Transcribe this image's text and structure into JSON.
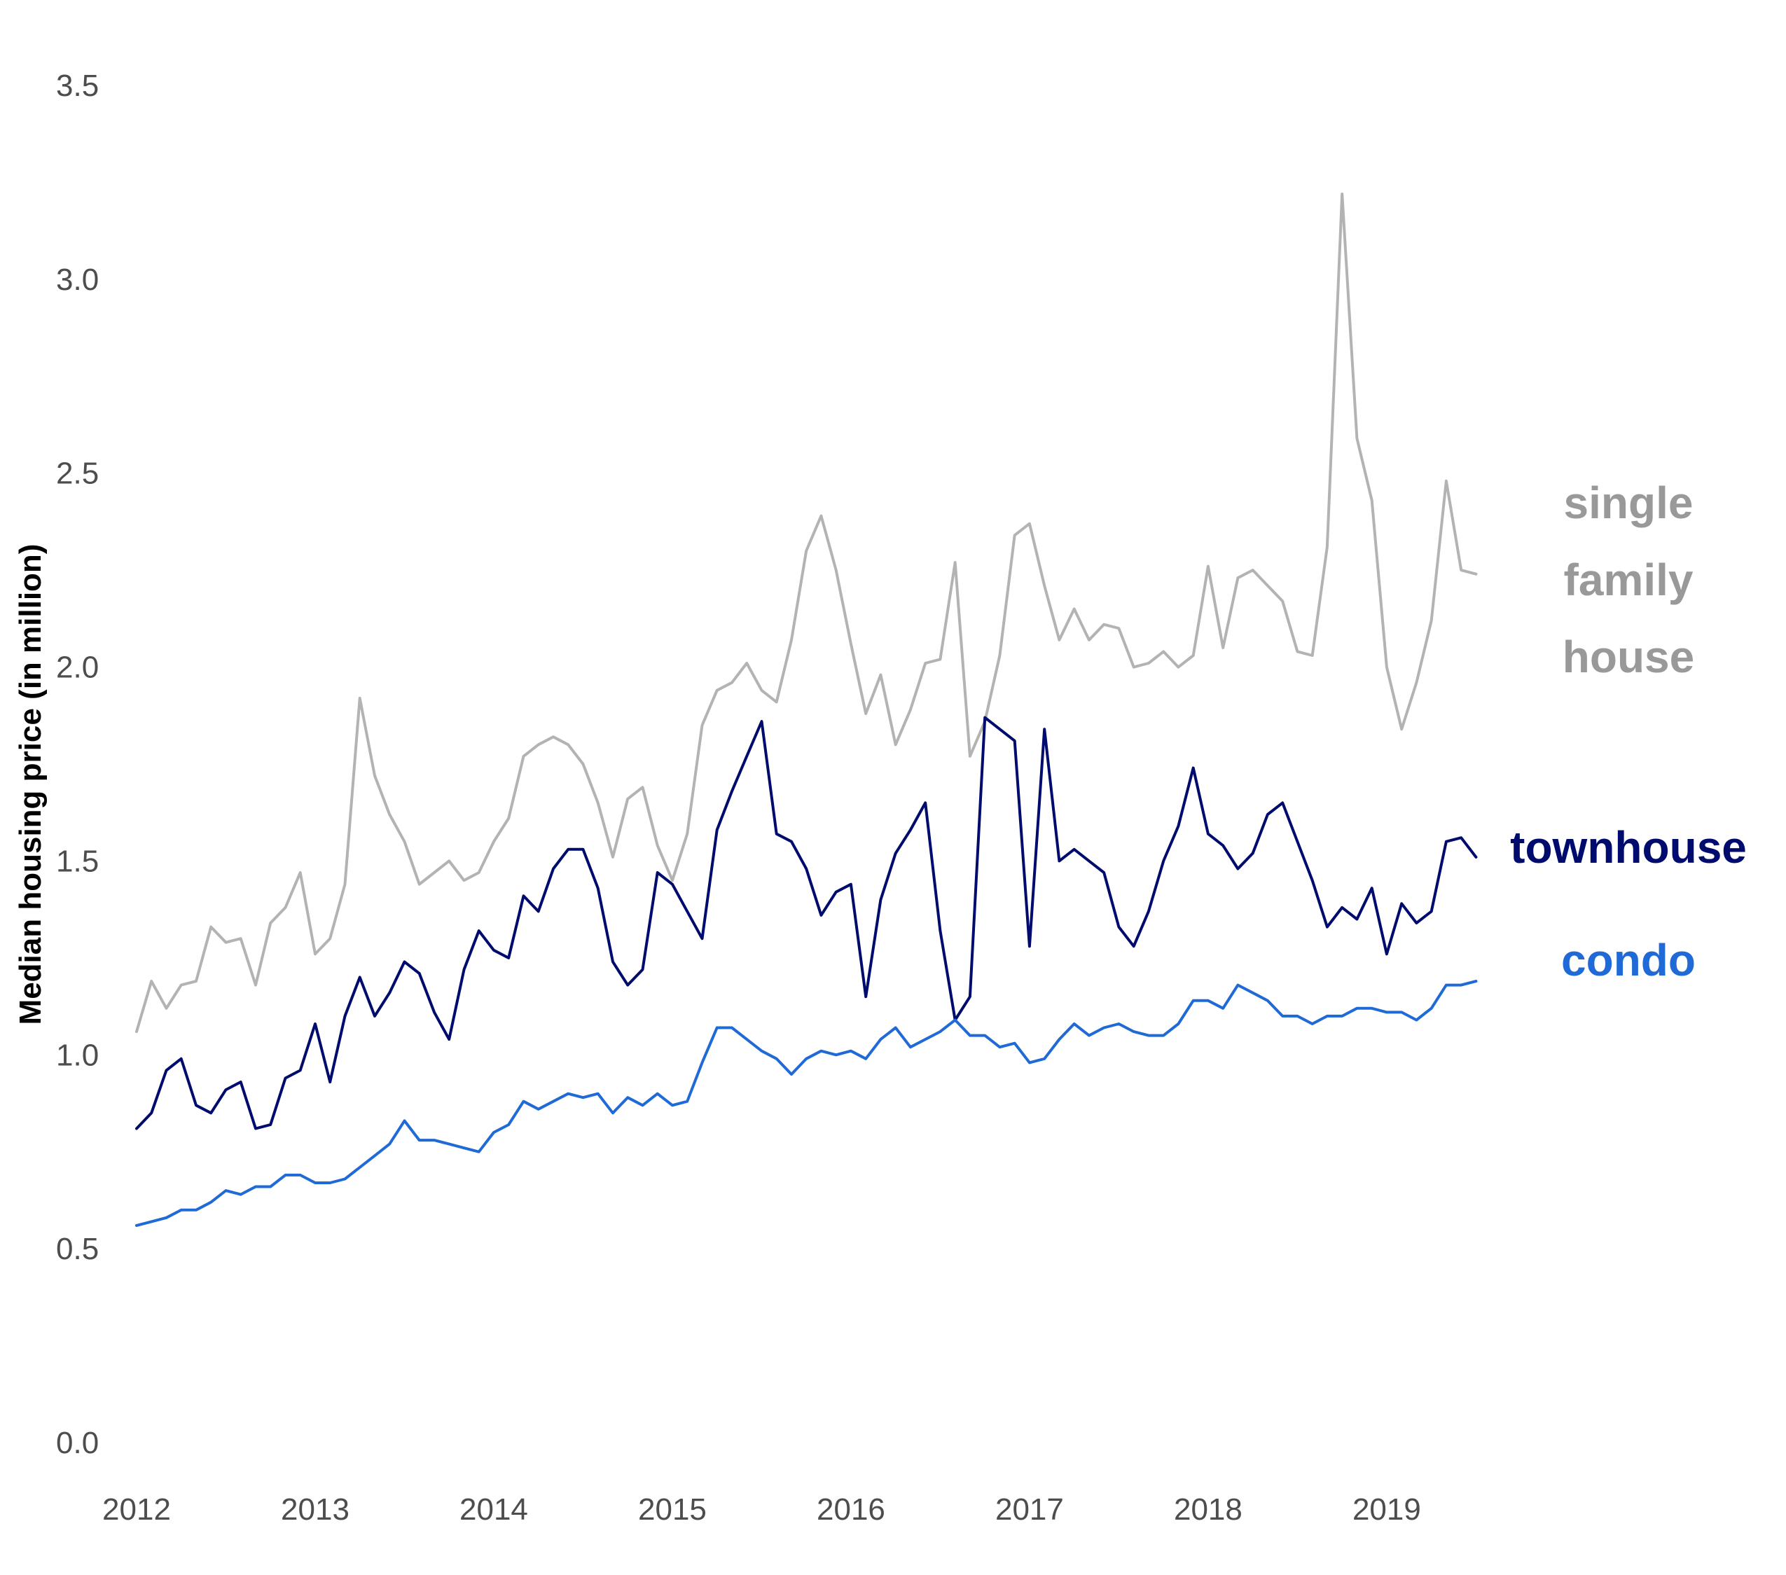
{
  "chart_data": {
    "type": "line",
    "title": "",
    "xlabel": "",
    "ylabel": "Median housing price (in million)",
    "x_start": "2012-01",
    "x_end": "2019-07",
    "x_step": "month",
    "xlim": [
      2012.0,
      2019.62
    ],
    "ylim": [
      0.0,
      3.5
    ],
    "y_ticks": [
      "0.0",
      "0.5",
      "1.0",
      "1.5",
      "2.0",
      "2.5",
      "3.0",
      "3.5"
    ],
    "x_ticks": [
      "2012",
      "2013",
      "2014",
      "2015",
      "2016",
      "2017",
      "2018",
      "2019"
    ],
    "grid": false,
    "legend": "direct labels at right end of lines",
    "series": [
      {
        "name": "single family house",
        "label_lines": [
          "single",
          "family",
          "house"
        ],
        "color": "#b3b3b3",
        "label_color": "#999999",
        "values": [
          1.06,
          1.19,
          1.12,
          1.18,
          1.19,
          1.33,
          1.29,
          1.3,
          1.18,
          1.34,
          1.38,
          1.47,
          1.26,
          1.3,
          1.44,
          1.92,
          1.72,
          1.62,
          1.55,
          1.44,
          1.47,
          1.5,
          1.45,
          1.47,
          1.55,
          1.61,
          1.77,
          1.8,
          1.82,
          1.8,
          1.75,
          1.65,
          1.51,
          1.66,
          1.69,
          1.54,
          1.45,
          1.57,
          1.85,
          1.94,
          1.96,
          2.01,
          1.94,
          1.91,
          2.07,
          2.3,
          2.39,
          2.25,
          2.06,
          1.88,
          1.98,
          1.8,
          1.89,
          2.01,
          2.02,
          2.27,
          1.77,
          1.86,
          2.03,
          2.34,
          2.37,
          2.21,
          2.07,
          2.15,
          2.07,
          2.11,
          2.1,
          2.0,
          2.01,
          2.04,
          2.0,
          2.03,
          2.26,
          2.05,
          2.23,
          2.25,
          2.21,
          2.17,
          2.04,
          2.03,
          2.31,
          3.22,
          2.59,
          2.43,
          2.0,
          1.84,
          1.96,
          2.12,
          2.48,
          2.25,
          2.24
        ]
      },
      {
        "name": "townhouse",
        "label_lines": [
          "townhouse"
        ],
        "color": "#000b6e",
        "label_color": "#000b6e",
        "values": [
          0.81,
          0.85,
          0.96,
          0.99,
          0.87,
          0.85,
          0.91,
          0.93,
          0.81,
          0.82,
          0.94,
          0.96,
          1.08,
          0.93,
          1.1,
          1.2,
          1.1,
          1.16,
          1.24,
          1.21,
          1.11,
          1.04,
          1.22,
          1.32,
          1.27,
          1.25,
          1.41,
          1.37,
          1.48,
          1.53,
          1.53,
          1.43,
          1.24,
          1.18,
          1.22,
          1.47,
          1.44,
          1.37,
          1.3,
          1.58,
          1.68,
          1.77,
          1.86,
          1.57,
          1.55,
          1.48,
          1.36,
          1.42,
          1.44,
          1.15,
          1.4,
          1.52,
          1.58,
          1.65,
          1.32,
          1.09,
          1.15,
          1.87,
          1.84,
          1.81,
          1.28,
          1.84,
          1.5,
          1.53,
          1.5,
          1.47,
          1.33,
          1.28,
          1.37,
          1.5,
          1.59,
          1.74,
          1.57,
          1.54,
          1.48,
          1.52,
          1.62,
          1.65,
          1.55,
          1.45,
          1.33,
          1.38,
          1.35,
          1.43,
          1.26,
          1.39,
          1.34,
          1.37,
          1.55,
          1.56,
          1.51
        ]
      },
      {
        "name": "condo",
        "label_lines": [
          "condo"
        ],
        "color": "#1f6ad6",
        "label_color": "#1f6ad6",
        "values": [
          0.56,
          0.57,
          0.58,
          0.6,
          0.6,
          0.62,
          0.65,
          0.64,
          0.66,
          0.66,
          0.69,
          0.69,
          0.67,
          0.67,
          0.68,
          0.71,
          0.74,
          0.77,
          0.83,
          0.78,
          0.78,
          0.77,
          0.76,
          0.75,
          0.8,
          0.82,
          0.88,
          0.86,
          0.88,
          0.9,
          0.89,
          0.9,
          0.85,
          0.89,
          0.87,
          0.9,
          0.87,
          0.88,
          0.98,
          1.07,
          1.07,
          1.04,
          1.01,
          0.99,
          0.95,
          0.99,
          1.01,
          1.0,
          1.01,
          0.99,
          1.04,
          1.07,
          1.02,
          1.04,
          1.06,
          1.09,
          1.05,
          1.05,
          1.02,
          1.03,
          0.98,
          0.99,
          1.04,
          1.08,
          1.05,
          1.07,
          1.08,
          1.06,
          1.05,
          1.05,
          1.08,
          1.14,
          1.14,
          1.12,
          1.18,
          1.16,
          1.14,
          1.1,
          1.1,
          1.08,
          1.1,
          1.1,
          1.12,
          1.12,
          1.11,
          1.11,
          1.09,
          1.12,
          1.18,
          1.18,
          1.19
        ]
      }
    ]
  }
}
